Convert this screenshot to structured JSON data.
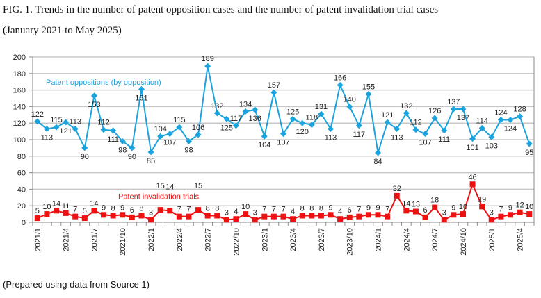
{
  "title_line1": "FIG. 1. Trends in the number of patent opposition cases and the number of patent invalidation trial cases",
  "title_line2": "(January 2021 to May 2025)",
  "note": "(Prepared using data from Source 1)",
  "chart_data": {
    "type": "line",
    "title": "",
    "xlabel": "",
    "ylabel": "",
    "ylim": [
      0,
      200
    ],
    "yticks": [
      0,
      20,
      40,
      60,
      80,
      100,
      120,
      140,
      160,
      180,
      200
    ],
    "grid": true,
    "x": [
      "2021/1",
      "2021/2",
      "2021/3",
      "2021/4",
      "2021/5",
      "2021/6",
      "2021/7",
      "2021/8",
      "2021/9",
      "2021/10",
      "2021/11",
      "2021/12",
      "2022/1",
      "2022/2",
      "2022/3",
      "2022/4",
      "2022/5",
      "2022/6",
      "2022/7",
      "2022/8",
      "2022/9",
      "2022/10",
      "2022/11",
      "2022/12",
      "2023/1",
      "2023/2",
      "2023/3",
      "2023/4",
      "2023/5",
      "2023/6",
      "2023/7",
      "2023/8",
      "2023/9",
      "2023/10",
      "2023/11",
      "2023/12",
      "2024/1",
      "2024/2",
      "2024/3",
      "2024/4",
      "2024/5",
      "2024/6",
      "2024/7",
      "2024/8",
      "2024/9",
      "2024/10",
      "2024/11",
      "2024/12",
      "2025/1",
      "2025/2",
      "2025/3",
      "2025/4",
      "2025/5"
    ],
    "xtick_labels": [
      "2021/1",
      "2021/4",
      "2021/7",
      "2021/10",
      "2022/1",
      "2022/4",
      "2022/7",
      "2022/10",
      "2023/1",
      "2023/4",
      "2023/7",
      "2023/10",
      "2024/1",
      "2024/4",
      "2024/7",
      "2024/10",
      "2025/1",
      "2025/4"
    ],
    "series": [
      {
        "name": "Patent oppositions (by opposition)",
        "color": "#1aa3dd",
        "marker": "diamond",
        "values": [
          122,
          113,
          115,
          121,
          113,
          90,
          153,
          112,
          111,
          98,
          90,
          161,
          85,
          104,
          107,
          115,
          98,
          106,
          189,
          132,
          125,
          117,
          134,
          136,
          104,
          157,
          107,
          125,
          120,
          118,
          131,
          113,
          166,
          140,
          117,
          155,
          84,
          121,
          113,
          132,
          112,
          107,
          126,
          111,
          137,
          137,
          101,
          114,
          103,
          124,
          124,
          128,
          95
        ]
      },
      {
        "name": "Patent invalidation trials",
        "color": "#ee1111",
        "marker": "square",
        "values": [
          5,
          10,
          14,
          11,
          7,
          5,
          14,
          9,
          8,
          9,
          6,
          8,
          3,
          15,
          14,
          7,
          7,
          15,
          8,
          8,
          3,
          4,
          10,
          3,
          7,
          7,
          7,
          4,
          8,
          8,
          8,
          9,
          4,
          6,
          7,
          9,
          9,
          7,
          32,
          14,
          13,
          6,
          18,
          3,
          9,
          10,
          46,
          19,
          3,
          7,
          9,
          12,
          10
        ]
      }
    ]
  }
}
